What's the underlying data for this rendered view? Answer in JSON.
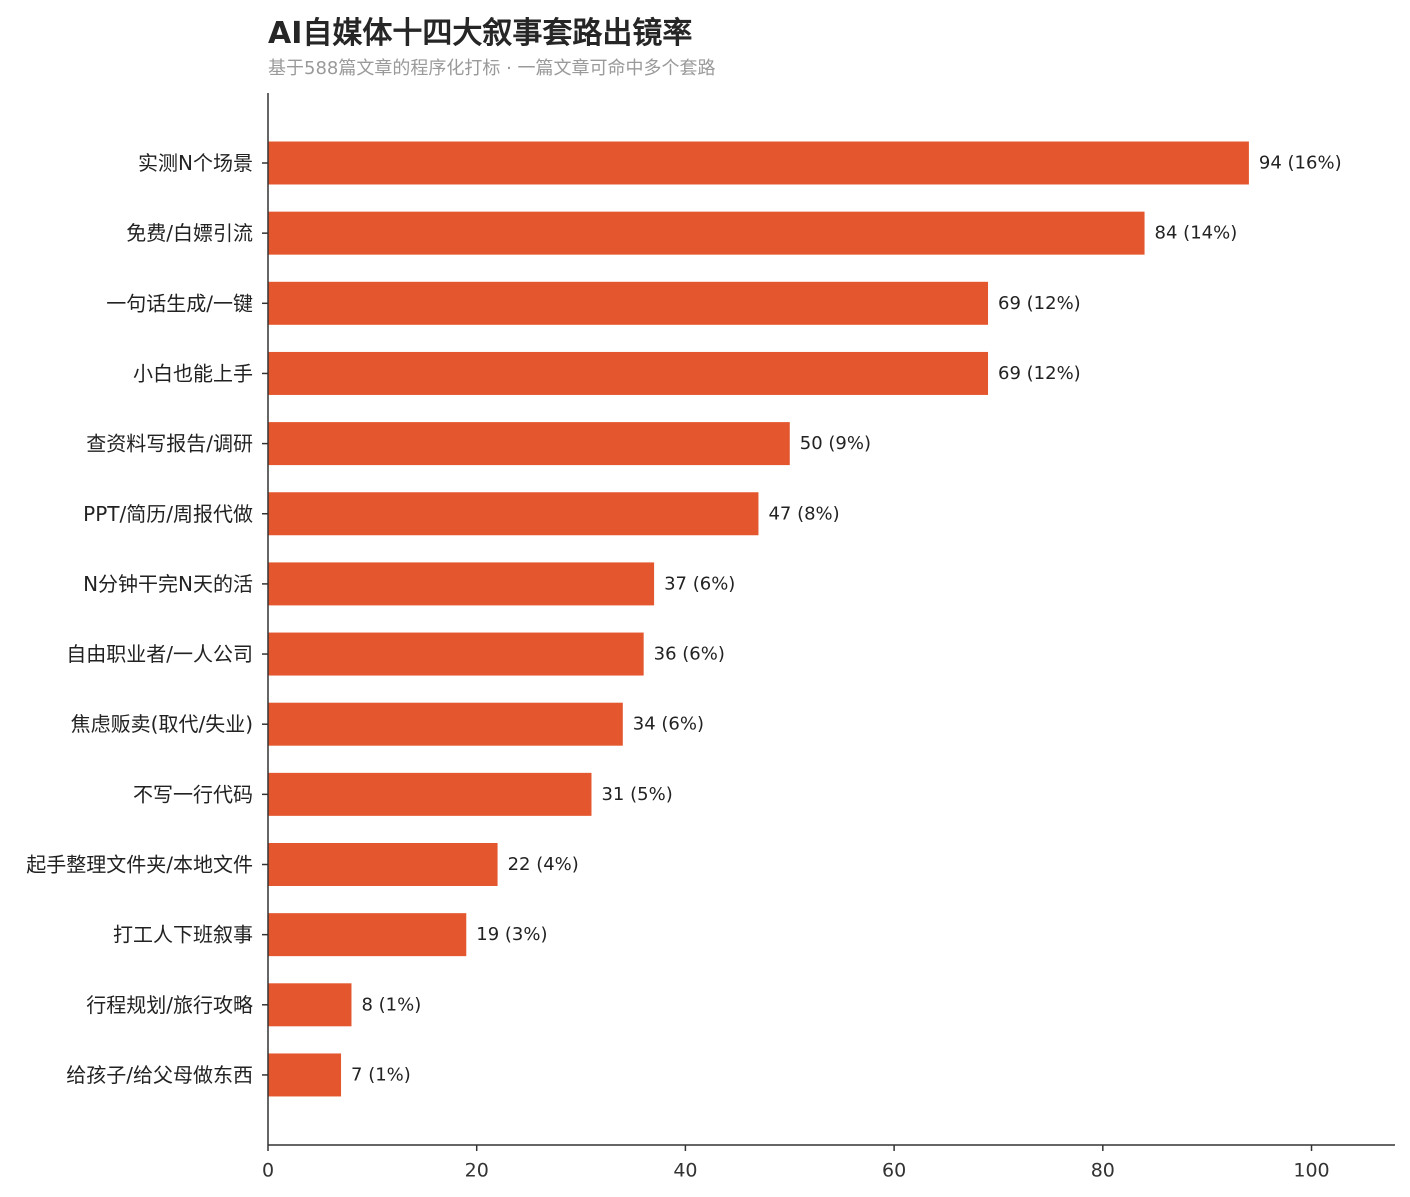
{
  "chart_data": {
    "type": "bar",
    "orientation": "horizontal",
    "title": "AI自媒体十四大叙事套路出镜率",
    "subtitle": "基于588篇文章的程序化打标 · 一篇文章可命中多个套路",
    "categories": [
      "实测N个场景",
      "免费/白嫖引流",
      "一句话生成/一键",
      "小白也能上手",
      "查资料写报告/调研",
      "PPT/简历/周报代做",
      "N分钟干完N天的活",
      "自由职业者/一人公司",
      "焦虑贩卖(取代/失业)",
      "不写一行代码",
      "起手整理文件夹/本地文件",
      "打工人下班叙事",
      "行程规划/旅行攻略",
      "给孩子/给父母做东西"
    ],
    "values": [
      94,
      84,
      69,
      69,
      50,
      47,
      37,
      36,
      34,
      31,
      22,
      19,
      8,
      7
    ],
    "data_labels": [
      "94 (16%)",
      "84 (14%)",
      "69 (12%)",
      "69 (12%)",
      "50 (9%)",
      "47 (8%)",
      "37 (6%)",
      "36 (6%)",
      "34 (6%)",
      "31 (5%)",
      "22 (4%)",
      "19 (3%)",
      "8 (1%)",
      "7 (1%)"
    ],
    "xlim": [
      0,
      108
    ],
    "xticks": [
      0,
      20,
      40,
      60,
      80,
      100
    ],
    "xtick_labels": [
      "0",
      "20",
      "40",
      "60",
      "80",
      "100"
    ],
    "xlabel": "",
    "ylabel": "",
    "grid": false,
    "legend": "none",
    "bar_color": "#e4572e",
    "axis_color": "#333333"
  }
}
